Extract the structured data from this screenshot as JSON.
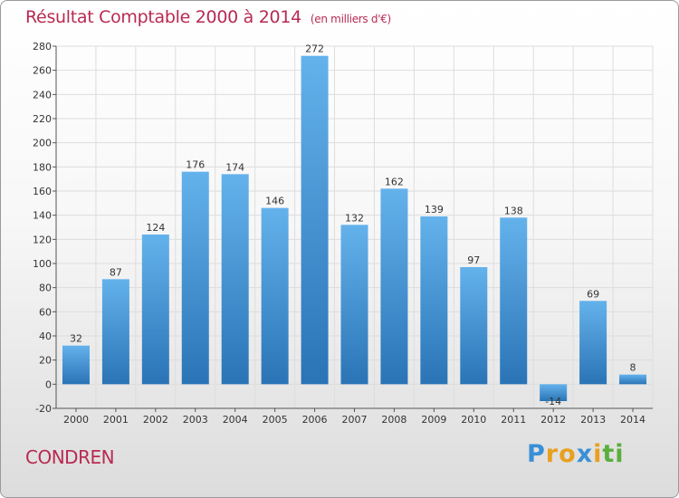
{
  "chart_data": {
    "type": "bar",
    "title": "Résultat Comptable 2000 à 2014",
    "subtitle": "(en milliers d'€)",
    "categories": [
      "2000",
      "2001",
      "2002",
      "2003",
      "2004",
      "2005",
      "2006",
      "2007",
      "2008",
      "2009",
      "2010",
      "2011",
      "2012",
      "2013",
      "2014"
    ],
    "values": [
      32,
      87,
      124,
      176,
      174,
      146,
      272,
      132,
      162,
      139,
      97,
      138,
      -14,
      69,
      8
    ],
    "ylim": [
      -20,
      280
    ],
    "yticks": [
      -20,
      0,
      20,
      40,
      60,
      80,
      100,
      120,
      140,
      160,
      180,
      200,
      220,
      240,
      260,
      280
    ],
    "xlabel": "",
    "ylabel": "",
    "grid": true
  },
  "commune": "CONDREN",
  "brand": {
    "letters": [
      "P",
      "r",
      "o",
      "x",
      "i",
      "t",
      "i"
    ],
    "colors": [
      "#3a8fd6",
      "#e8a020",
      "#e8a020",
      "#3a8fd6",
      "#e8a020",
      "#5aae3c",
      "#5aae3c"
    ]
  },
  "colors": {
    "bar_top": "#64b2ec",
    "bar_bottom": "#2a74b6",
    "accent": "#b82a52",
    "grid": "#dddddd"
  }
}
